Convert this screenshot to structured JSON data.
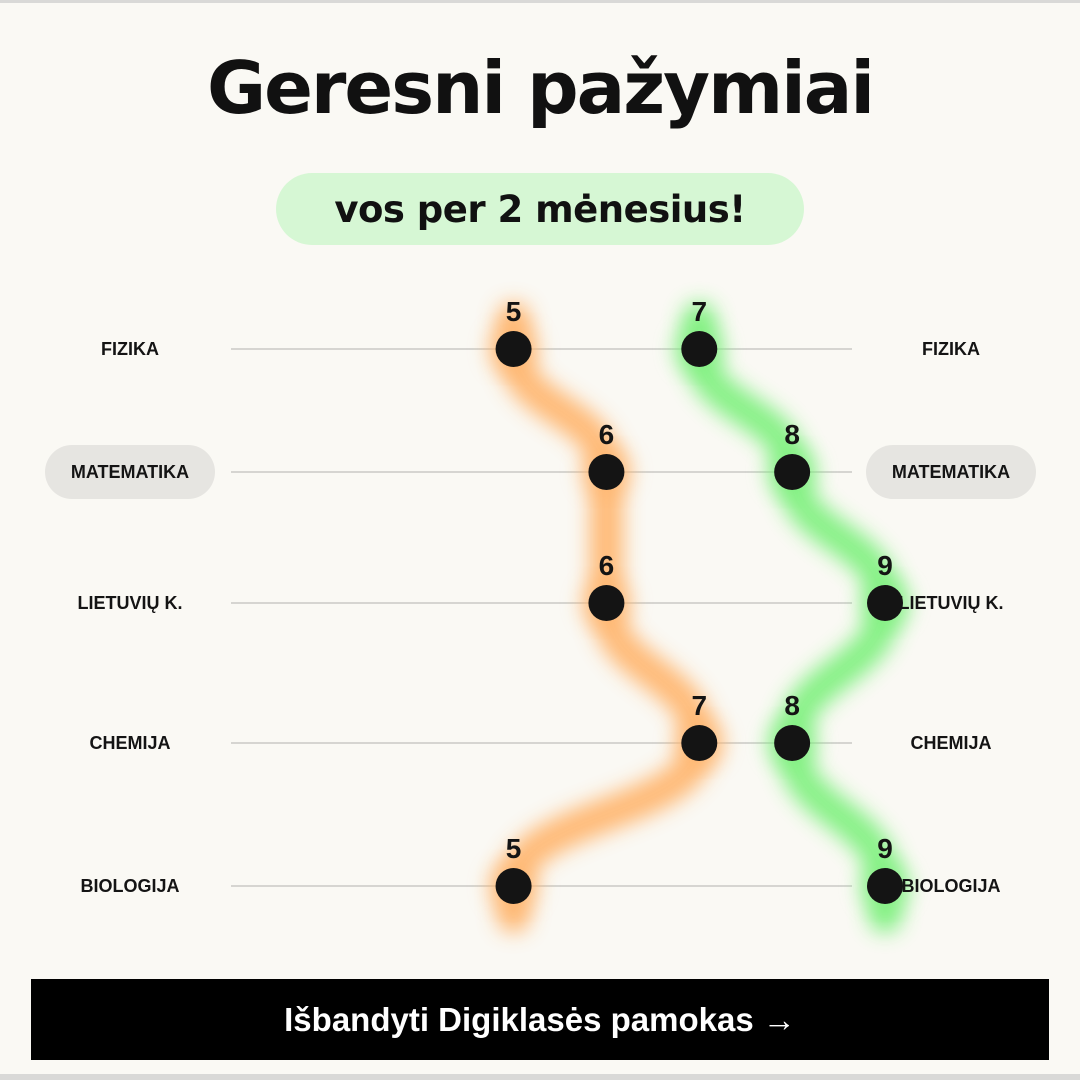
{
  "header": {
    "title": "Geresni pažymiai",
    "subtitle": "vos per 2 mėnesius!"
  },
  "colors": {
    "before_glow": "#ffb46b",
    "after_glow": "#7bf07b",
    "dot": "#141414",
    "row_line": "#c9c9c5",
    "subtitle_pill": "#d6f7d4",
    "highlight_pill": "#e6e5e1"
  },
  "chart_data": {
    "type": "line",
    "orientation": "horizontal-dot-plot",
    "categories": [
      "FIZIKA",
      "MATEMATIKA",
      "LIETUVIŲ K.",
      "CHEMIJA",
      "BIOLOGIJA"
    ],
    "highlighted_category": "MATEMATIKA",
    "series": [
      {
        "values": [
          5,
          6,
          6,
          7,
          5
        ],
        "color": "#ffb46b"
      },
      {
        "values": [
          7,
          8,
          9,
          8,
          9
        ],
        "color": "#7bf07b"
      }
    ],
    "xlim": [
      2.7,
      9.7
    ],
    "grid": false,
    "legend": "none"
  },
  "cta": {
    "label": "Išbandyti Digiklasės pamokas →"
  }
}
